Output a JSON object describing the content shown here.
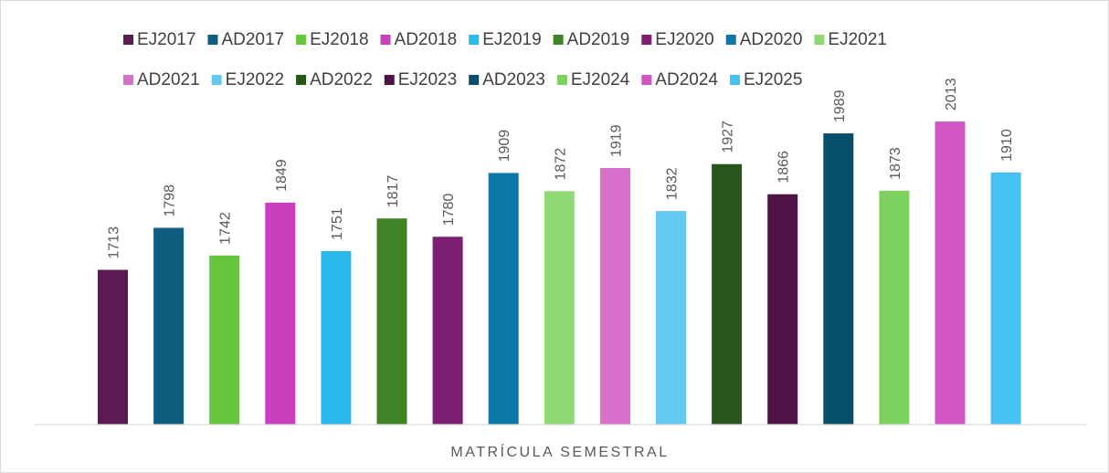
{
  "chart_data": {
    "type": "bar",
    "title": "",
    "xlabel": "MATRÍCULA SEMESTRAL",
    "ylabel": "",
    "ylim": [
      1400,
      2100
    ],
    "grid": false,
    "legend_position": "top",
    "data_labels": true,
    "categories": [
      "EJ2017",
      "AD2017",
      "EJ2018",
      "AD2018",
      "EJ2019",
      "AD2019",
      "EJ2020",
      "AD2020",
      "EJ2021",
      "AD2021",
      "EJ2022",
      "AD2022",
      "EJ2023",
      "AD2023",
      "EJ2024",
      "AD2024",
      "EJ2025"
    ],
    "values": [
      1713,
      1798,
      1742,
      1849,
      1751,
      1817,
      1780,
      1909,
      1872,
      1919,
      1832,
      1927,
      1866,
      1989,
      1873,
      2013,
      1910
    ],
    "colors": [
      "#5b1a53",
      "#0e5e80",
      "#67c63d",
      "#ca3fbd",
      "#2cb9ee",
      "#3e8426",
      "#7c1f72",
      "#0b79a8",
      "#8ed976",
      "#d770ca",
      "#64caf2",
      "#285519",
      "#4e1345",
      "#064f6a",
      "#7cd15f",
      "#d056c2",
      "#47c1f0"
    ]
  }
}
